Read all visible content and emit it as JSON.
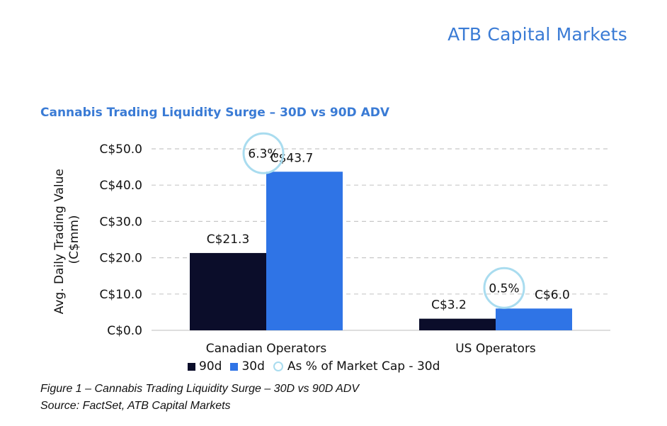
{
  "brand": {
    "name": "ATB Capital Markets"
  },
  "figure": {
    "caption": "Figure 1 – Cannabis Trading Liquidity Surge – 30D vs 90D ADV",
    "source": "Source: FactSet, ATB Capital Markets"
  },
  "chart_data": {
    "type": "bar",
    "title": "Cannabis Trading Liquidity Surge – 30D vs 90D ADV",
    "xlabel": "",
    "ylabel": "Avg. Daily Trading Value (C$mm)",
    "ylim": [
      0,
      50
    ],
    "yticks": [
      0,
      10,
      20,
      30,
      40,
      50
    ],
    "ytick_labels": [
      "C$0.0",
      "C$10.0",
      "C$20.0",
      "C$30.0",
      "C$40.0",
      "C$50.0"
    ],
    "grid": true,
    "categories": [
      "Canadian Operators",
      "US Operators"
    ],
    "series": [
      {
        "name": "90d",
        "color": "#0b0d2a",
        "values": [
          21.3,
          3.2
        ],
        "labels": [
          "C$21.3",
          "C$3.2"
        ]
      },
      {
        "name": "30d",
        "color": "#2f74e6",
        "values": [
          43.7,
          6.0
        ],
        "labels": [
          "C$43.7",
          "C$6.0"
        ]
      }
    ],
    "annotations": {
      "name": "As % of Market Cap - 30d",
      "color": "#a9dcef",
      "labels": [
        "6.3%",
        "0.5%"
      ]
    },
    "legend_position": "bottom"
  }
}
